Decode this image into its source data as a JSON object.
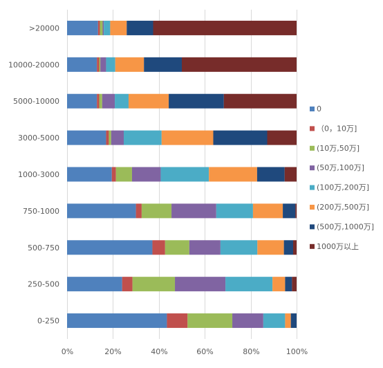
{
  "chart_data": {
    "type": "bar",
    "orientation": "horizontal",
    "stacked": "percent",
    "categories": [
      ">20000",
      "10000-20000",
      "5000-10000",
      "3000-5000",
      "1000-3000",
      "750-1000",
      "500-750",
      "250-500",
      "0-250"
    ],
    "xlim": [
      0,
      100
    ],
    "x_ticks": [
      "0%",
      "20%",
      "40%",
      "60%",
      "80%",
      "100%"
    ],
    "grid": "vertical",
    "legend_position": "right",
    "series": [
      {
        "name": "0",
        "color": "#4F81BD",
        "values": [
          13.5,
          13,
          13,
          17,
          19.5,
          30,
          37,
          24,
          43.5
        ]
      },
      {
        "name": "（0，10万]",
        "color": "#C0504D",
        "values": [
          0.8,
          1,
          1,
          1.2,
          1.8,
          2.5,
          5.5,
          4.5,
          9
        ]
      },
      {
        "name": "(10万,50万]",
        "color": "#9BBB59",
        "values": [
          1.2,
          0.5,
          1.3,
          1,
          7,
          13,
          10.5,
          18.5,
          19.5
        ]
      },
      {
        "name": "(50万,100万]",
        "color": "#8064A2",
        "values": [
          0.5,
          2.5,
          5.5,
          5.5,
          12.5,
          19.5,
          13.5,
          22,
          13.5
        ]
      },
      {
        "name": "(100万,200万]",
        "color": "#4BACC6",
        "values": [
          2.8,
          4,
          6,
          16.5,
          21,
          16,
          16,
          20.5,
          9.5
        ]
      },
      {
        "name": "(200万,500万]",
        "color": "#F79646",
        "values": [
          7.2,
          12.5,
          17.5,
          22.5,
          21,
          13,
          11.5,
          5.5,
          2.5
        ]
      },
      {
        "name": "(500万,1000万]",
        "color": "#1F497D",
        "values": [
          11.5,
          16.5,
          24,
          23.5,
          12,
          5.5,
          4,
          3,
          2.5
        ]
      },
      {
        "name": "1000万以上",
        "color": "#772C2A",
        "values": [
          62.5,
          50,
          31.7,
          12.8,
          5.2,
          0.5,
          1.5,
          2,
          0
        ]
      }
    ]
  }
}
